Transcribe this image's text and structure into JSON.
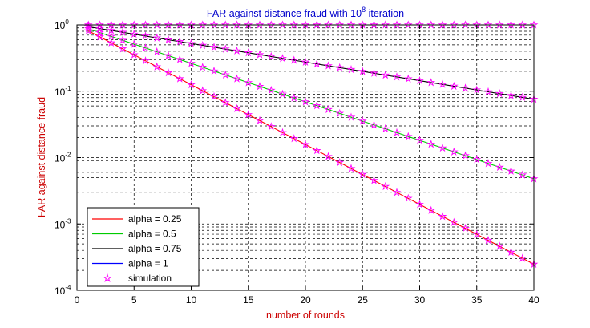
{
  "chart_data": {
    "type": "line",
    "title": "FAR against distance fraud with 10",
    "title_superscript": "8",
    "title_suffix": " iteration",
    "xlabel": "number of rounds",
    "ylabel": "FAR against distance fraud",
    "y_scale": "log",
    "xlim": [
      0,
      40
    ],
    "ylim": [
      0.0001,
      1
    ],
    "x_ticks": [
      0,
      5,
      10,
      15,
      20,
      25,
      30,
      35,
      40
    ],
    "y_ticks": [
      {
        "base": "10",
        "exp": "0",
        "value": 1
      },
      {
        "base": "10",
        "exp": "-1",
        "value": 0.1
      },
      {
        "base": "10",
        "exp": "-2",
        "value": 0.01
      },
      {
        "base": "10",
        "exp": "-3",
        "value": 0.001
      },
      {
        "base": "10",
        "exp": "-4",
        "value": 0.0001
      }
    ],
    "grid": true,
    "legend_position": "bottom-left",
    "series": [
      {
        "name": "alpha = 0.25",
        "color": "#ff0000",
        "per_round_factor": 0.8125
      },
      {
        "name": "alpha = 0.5",
        "color": "#00cc00",
        "per_round_factor": 0.875
      },
      {
        "name": "alpha = 0.75",
        "color": "#000000",
        "per_round_factor": 0.9375
      },
      {
        "name": "alpha = 1",
        "color": "#0000ff",
        "per_round_factor": 1.0
      }
    ],
    "simulation": {
      "name": "simulation",
      "color": "#ff00ff",
      "marker": "pentagram",
      "x_start": 1,
      "x_end": 40
    }
  }
}
